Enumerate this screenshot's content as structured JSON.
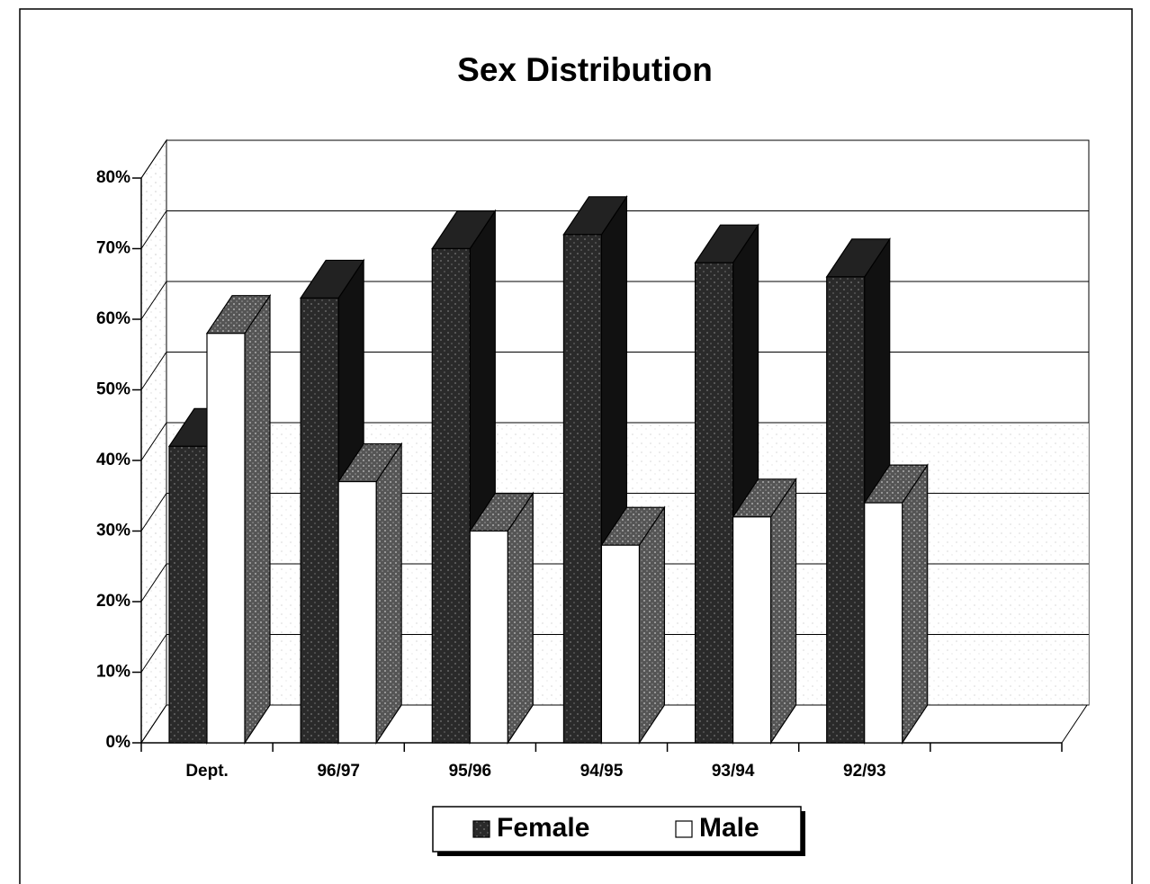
{
  "chart_data": {
    "type": "bar3d",
    "title": "Sex Distribution",
    "categories": [
      "Dept.",
      "96/97",
      "95/96",
      "94/95",
      "93/94",
      "92/93",
      null
    ],
    "series": [
      {
        "name": "Female",
        "color": "#333333",
        "values": [
          42,
          63,
          70,
          72,
          68,
          66,
          null
        ]
      },
      {
        "name": "Male",
        "color": "#ffffff",
        "values": [
          58,
          37,
          30,
          28,
          32,
          34,
          null
        ]
      }
    ],
    "ylim": [
      0,
      80
    ],
    "yticks": [
      {
        "value": 0,
        "label": "0%"
      },
      {
        "value": 10,
        "label": "10%"
      },
      {
        "value": 20,
        "label": "20%"
      },
      {
        "value": 30,
        "label": "30%"
      },
      {
        "value": 40,
        "label": "40%"
      },
      {
        "value": 50,
        "label": "50%"
      },
      {
        "value": 60,
        "label": "60%"
      },
      {
        "value": 70,
        "label": "70%"
      },
      {
        "value": 80,
        "label": "80%"
      }
    ],
    "grid": true,
    "legend": "bottom"
  }
}
